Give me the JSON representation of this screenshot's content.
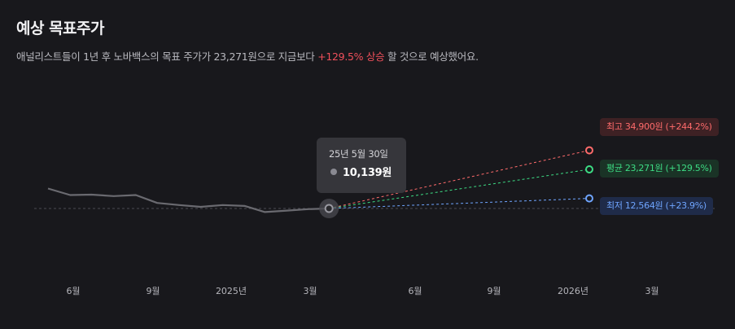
{
  "header": {
    "title": "예상 목표주가",
    "subtitle_prefix": "애널리스트들이 1년 후 노바백스의 목표 주가가 23,271원으로 지금보다 ",
    "subtitle_highlight": "+129.5% 상승",
    "subtitle_suffix": " 할 것으로 예상했어요."
  },
  "tooltip": {
    "date": "25년 5월 30일",
    "value": "10,139원"
  },
  "targets": {
    "high_label": "최고 34,900원 (+244.2%)",
    "avg_label": "평균 23,271원 (+129.5%)",
    "low_label": "최저 12,564원 (+23.9%)"
  },
  "chart_data": {
    "type": "line",
    "x_ticks": [
      "6월",
      "9월",
      "2025년",
      "3월",
      "6월",
      "9월",
      "2026년",
      "3월"
    ],
    "history": {
      "x": [
        "2024-05-01",
        "2024-06-01",
        "2024-07-01",
        "2024-08-01",
        "2024-09-01",
        "2024-10-01",
        "2024-11-01",
        "2024-12-01",
        "2025-01-01",
        "2025-02-01",
        "2025-03-01",
        "2025-04-01",
        "2025-05-01",
        "2025-05-30"
      ],
      "y": [
        15500,
        13500,
        13600,
        13200,
        13500,
        11400,
        10900,
        10500,
        10900,
        10700,
        9400,
        9700,
        10000,
        10139
      ]
    },
    "current": {
      "date": "2025-05-30",
      "value": 10139
    },
    "projection": [
      {
        "name": "최고",
        "date": "2026-05-30",
        "value": 34900,
        "change_pct": 244.2,
        "color": "#ff6b6b"
      },
      {
        "name": "평균",
        "date": "2026-05-30",
        "value": 23271,
        "change_pct": 129.5,
        "color": "#3ddc84"
      },
      {
        "name": "최저",
        "date": "2026-05-30",
        "value": 12564,
        "change_pct": 23.9,
        "color": "#6fa5ff"
      }
    ],
    "history_color": "#6a6a70",
    "reference_line": 10139,
    "grid": false,
    "legend": "right"
  }
}
